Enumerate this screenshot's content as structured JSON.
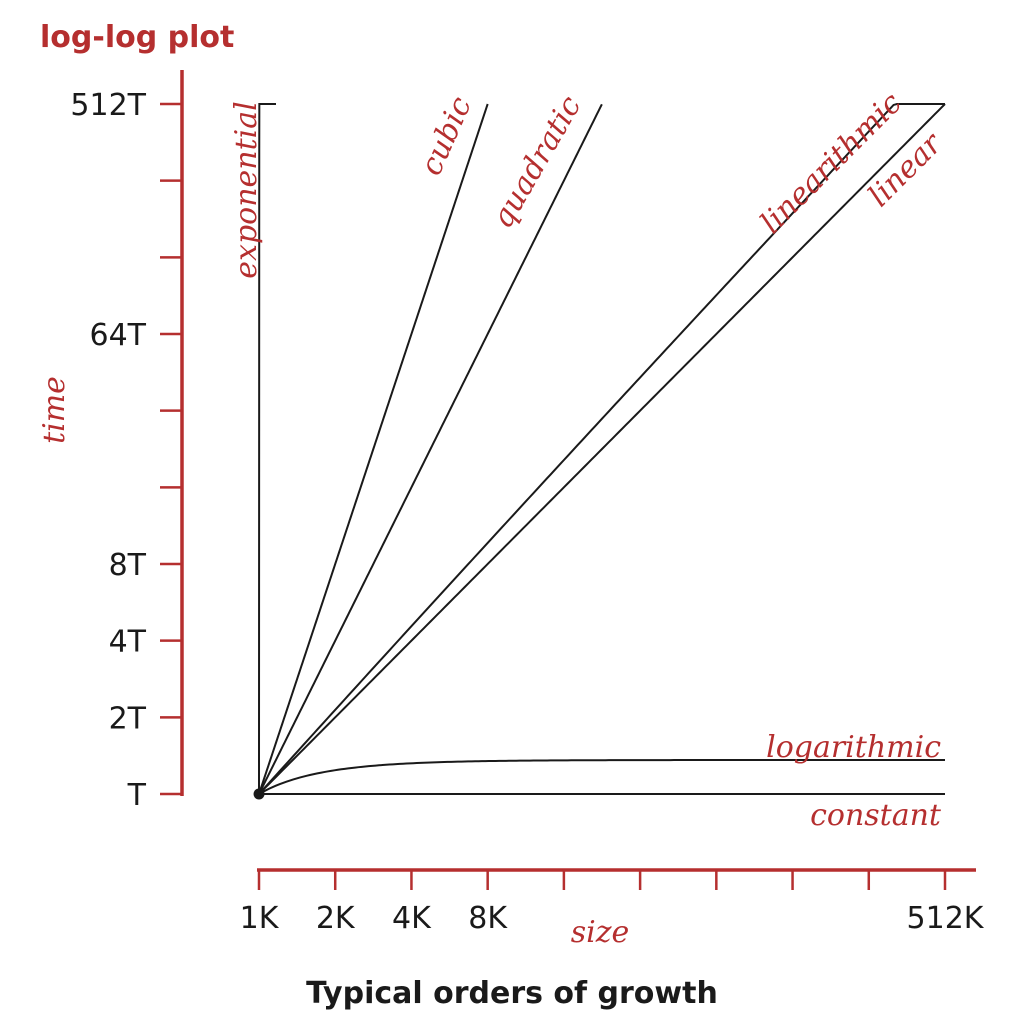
{
  "chart_data": {
    "type": "line",
    "title": "log-log plot",
    "caption": "Typical orders of growth",
    "xlabel": "size",
    "ylabel": "time",
    "x_scale": "log2",
    "y_scale": "log2",
    "xlim": [
      1,
      512
    ],
    "ylim": [
      1,
      512
    ],
    "x_unit_suffix": "K",
    "y_unit_suffix": "T",
    "x_ticks": [
      1,
      2,
      4,
      8,
      16,
      32,
      64,
      128,
      256,
      512
    ],
    "x_tick_labels": [
      {
        "value": 1,
        "label": "1K"
      },
      {
        "value": 2,
        "label": "2K"
      },
      {
        "value": 4,
        "label": "4K"
      },
      {
        "value": 8,
        "label": "8K"
      },
      {
        "value": 512,
        "label": "512K"
      }
    ],
    "y_ticks": [
      1,
      2,
      4,
      8,
      16,
      32,
      64,
      128,
      256,
      512
    ],
    "y_tick_labels": [
      {
        "value": 1,
        "label": "T"
      },
      {
        "value": 2,
        "label": "2T"
      },
      {
        "value": 4,
        "label": "4T"
      },
      {
        "value": 8,
        "label": "8T"
      },
      {
        "value": 64,
        "label": "64T"
      },
      {
        "value": 512,
        "label": "512T"
      }
    ],
    "series": [
      {
        "name": "constant",
        "kind": "constant",
        "x_range": [
          1,
          512
        ]
      },
      {
        "name": "logarithmic",
        "kind": "logarithmic",
        "x_range": [
          1,
          512
        ]
      },
      {
        "name": "linear",
        "kind": "linear",
        "x_range": [
          1,
          512
        ]
      },
      {
        "name": "linearithmic",
        "kind": "linearithmic",
        "x_range": [
          1,
          512
        ]
      },
      {
        "name": "quadratic",
        "kind": "quadratic",
        "x_range": [
          1,
          22.6
        ]
      },
      {
        "name": "cubic",
        "kind": "cubic",
        "x_range": [
          1,
          8
        ]
      },
      {
        "name": "exponential",
        "kind": "exponential",
        "x_range": [
          1,
          1.25
        ]
      }
    ],
    "origin_marker": true,
    "grid": false,
    "legend": "inline labels"
  },
  "colors": {
    "accent": "#b52f2f",
    "curve": "#1a1a1a",
    "text": "#1a1a1a"
  }
}
